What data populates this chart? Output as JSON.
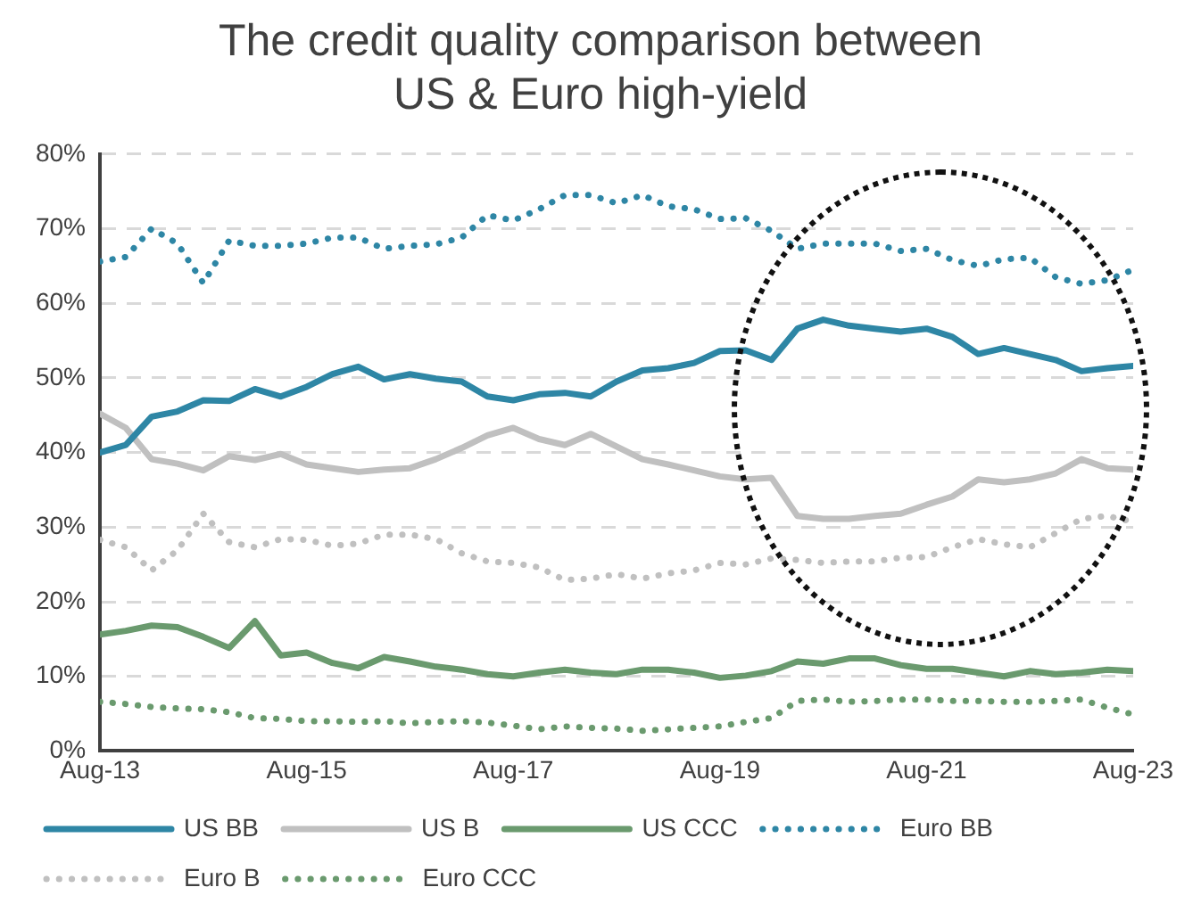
{
  "chart_data": {
    "type": "line",
    "title": "The credit quality comparison between US & Euro high-yield",
    "x": [
      "2013-08",
      "2013-11",
      "2014-02",
      "2014-05",
      "2014-08",
      "2014-11",
      "2015-02",
      "2015-05",
      "2015-08",
      "2015-11",
      "2016-02",
      "2016-05",
      "2016-08",
      "2016-11",
      "2017-02",
      "2017-05",
      "2017-08",
      "2017-11",
      "2018-02",
      "2018-05",
      "2018-08",
      "2018-11",
      "2019-02",
      "2019-05",
      "2019-08",
      "2019-11",
      "2020-02",
      "2020-05",
      "2020-08",
      "2020-11",
      "2021-02",
      "2021-05",
      "2021-08",
      "2021-11",
      "2022-02",
      "2022-05",
      "2022-08",
      "2022-11",
      "2023-02",
      "2023-05",
      "2023-08"
    ],
    "xlim": [
      "2013-08",
      "2023-08"
    ],
    "xticks": [
      {
        "value": "2013-08",
        "label": "Aug-13"
      },
      {
        "value": "2015-08",
        "label": "Aug-15"
      },
      {
        "value": "2017-08",
        "label": "Aug-17"
      },
      {
        "value": "2019-08",
        "label": "Aug-19"
      },
      {
        "value": "2021-08",
        "label": "Aug-21"
      },
      {
        "value": "2023-08",
        "label": "Aug-23"
      }
    ],
    "ylim": [
      0,
      80
    ],
    "yticks": [
      {
        "value": 0,
        "label": "0%"
      },
      {
        "value": 10,
        "label": "10%"
      },
      {
        "value": 20,
        "label": "20%"
      },
      {
        "value": 30,
        "label": "30%"
      },
      {
        "value": 40,
        "label": "40%"
      },
      {
        "value": 50,
        "label": "50%"
      },
      {
        "value": 60,
        "label": "60%"
      },
      {
        "value": 70,
        "label": "70%"
      },
      {
        "value": 80,
        "label": "80%"
      }
    ],
    "grid": "y",
    "legend": "bottom",
    "marker": "none",
    "series": [
      {
        "name": "US BB",
        "color": "#2e86a5",
        "line_style": "solid",
        "values": [
          40,
          41,
          44.8,
          45.5,
          47,
          46.9,
          48.5,
          47.5,
          48.8,
          50.5,
          51.5,
          49.8,
          50.5,
          49.9,
          49.5,
          47.5,
          47,
          47.8,
          48,
          47.5,
          49.5,
          51,
          51.3,
          52,
          53.6,
          53.7,
          52.4,
          56.6,
          57.8,
          57,
          56.6,
          56.2,
          56.6,
          55.5,
          53.2,
          54,
          53.2,
          52.4,
          50.9,
          51.3,
          51.6
        ]
      },
      {
        "name": "US B",
        "color": "#c0c0c0",
        "line_style": "solid",
        "values": [
          45.2,
          43.3,
          39.1,
          38.5,
          37.6,
          39.5,
          39,
          39.8,
          38.4,
          37.9,
          37.4,
          37.7,
          37.9,
          39.1,
          40.6,
          42.3,
          43.3,
          41.8,
          41,
          42.5,
          40.8,
          39.1,
          38.4,
          37.6,
          36.8,
          36.4,
          36.6,
          31.5,
          31.1,
          31.1,
          31.5,
          31.8,
          33,
          34.1,
          36.4,
          36,
          36.4,
          37.2,
          39.1,
          37.9,
          37.7
        ]
      },
      {
        "name": "US CCC",
        "color": "#6a9a6e",
        "line_style": "solid",
        "values": [
          15.6,
          16.1,
          16.8,
          16.6,
          15.3,
          13.8,
          17.4,
          12.8,
          13.2,
          11.8,
          11.1,
          12.6,
          12,
          11.3,
          10.9,
          10.3,
          10,
          10.5,
          10.9,
          10.5,
          10.3,
          10.9,
          10.9,
          10.5,
          9.8,
          10.1,
          10.7,
          12,
          11.7,
          12.4,
          12.4,
          11.5,
          11,
          11,
          10.5,
          10,
          10.7,
          10.3,
          10.5,
          10.9,
          10.7
        ]
      },
      {
        "name": "Euro BB",
        "color": "#2e86a5",
        "line_style": "dotted",
        "values": [
          65.6,
          66.2,
          70,
          68,
          62.7,
          68.4,
          67.7,
          67.7,
          68,
          68.8,
          68.8,
          67.3,
          67.7,
          67.9,
          68.8,
          71.8,
          71.1,
          72.6,
          74.5,
          74.5,
          73.4,
          74.5,
          73,
          72.6,
          71.3,
          71.4,
          69.7,
          67.3,
          68,
          68,
          68,
          67,
          67.3,
          65.8,
          65,
          65.9,
          66.1,
          63.5,
          62.6,
          63.1,
          64.5
        ]
      },
      {
        "name": "Euro B",
        "color": "#c0c0c0",
        "line_style": "dotted",
        "values": [
          28.3,
          27.3,
          24.2,
          26.9,
          31.8,
          28,
          27.3,
          28.4,
          28.3,
          27.5,
          27.8,
          29,
          29,
          28.4,
          26.5,
          25.4,
          25.2,
          24.6,
          22.9,
          23.1,
          23.7,
          23.1,
          23.8,
          24.2,
          25.2,
          25,
          25.8,
          25.6,
          25.2,
          25.4,
          25.4,
          25.9,
          26,
          27.3,
          28.4,
          27.7,
          27.3,
          29.2,
          31.1,
          31.5,
          30.7
        ]
      },
      {
        "name": "Euro CCC",
        "color": "#6a9a6e",
        "line_style": "dotted",
        "values": [
          6.6,
          6.3,
          5.9,
          5.7,
          5.6,
          5.2,
          4.4,
          4.3,
          4,
          4,
          3.9,
          4,
          3.7,
          3.9,
          4,
          3.8,
          3.4,
          2.9,
          3.3,
          3.1,
          3,
          2.7,
          2.9,
          3.1,
          3.3,
          3.9,
          4.4,
          6.7,
          6.9,
          6.6,
          6.7,
          6.9,
          6.9,
          6.7,
          6.7,
          6.6,
          6.6,
          6.7,
          6.9,
          5.8,
          4.9
        ]
      }
    ]
  }
}
